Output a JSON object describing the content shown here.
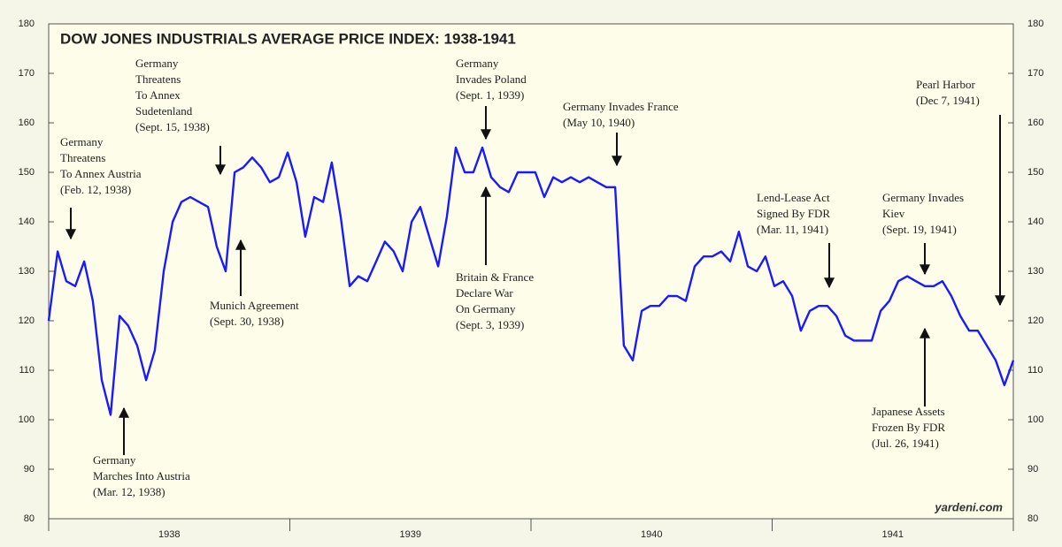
{
  "chart_data": {
    "type": "line",
    "title": "DOW JONES INDUSTRIALS AVERAGE PRICE INDEX: 1938-1941",
    "source": "yardeni.com",
    "x": [
      1938.0,
      1938.037,
      1938.073,
      1938.11,
      1938.147,
      1938.183,
      1938.22,
      1938.257,
      1938.294,
      1938.33,
      1938.367,
      1938.404,
      1938.44,
      1938.477,
      1938.514,
      1938.55,
      1938.587,
      1938.624,
      1938.661,
      1938.697,
      1938.734,
      1938.771,
      1938.807,
      1938.844,
      1938.881,
      1938.917,
      1938.954,
      1938.991,
      1939.028,
      1939.064,
      1939.101,
      1939.138,
      1939.174,
      1939.211,
      1939.248,
      1939.284,
      1939.321,
      1939.358,
      1939.394,
      1939.431,
      1939.468,
      1939.505,
      1939.541,
      1939.578,
      1939.615,
      1939.651,
      1939.688,
      1939.725,
      1939.761,
      1939.798,
      1939.835,
      1939.872,
      1939.908,
      1939.945,
      1939.982,
      1940.018,
      1940.055,
      1940.092,
      1940.128,
      1940.165,
      1940.202,
      1940.239,
      1940.275,
      1940.312,
      1940.349,
      1940.385,
      1940.422,
      1940.459,
      1940.495,
      1940.532,
      1940.569,
      1940.606,
      1940.642,
      1940.679,
      1940.716,
      1940.752,
      1940.789,
      1940.826,
      1940.862,
      1940.899,
      1940.936,
      1940.972,
      1941.009,
      1941.046,
      1941.083,
      1941.119,
      1941.156,
      1941.193,
      1941.229,
      1941.266,
      1941.303,
      1941.339,
      1941.376,
      1941.413,
      1941.45,
      1941.486,
      1941.523,
      1941.56,
      1941.596,
      1941.633,
      1941.67,
      1941.706,
      1941.743,
      1941.78,
      1941.817,
      1941.853,
      1941.89,
      1941.927,
      1941.963,
      1942.0
    ],
    "series": [
      {
        "name": "Dow Jones Industrials Average",
        "color": "#1a1aff",
        "values": [
          120,
          134,
          128,
          127,
          132,
          124,
          108,
          101,
          121,
          119,
          115,
          108,
          114,
          130,
          140,
          144,
          145,
          144,
          143,
          135,
          130,
          150,
          151,
          153,
          151,
          148,
          149,
          154,
          148,
          137,
          145,
          144,
          152,
          141,
          127,
          129,
          128,
          132,
          136,
          134,
          130,
          140,
          143,
          137,
          131,
          141,
          155,
          150,
          150,
          155,
          149,
          147,
          146,
          150,
          150,
          150,
          145,
          149,
          148,
          149,
          148,
          149,
          148,
          147,
          147,
          115,
          112,
          122,
          123,
          123,
          125,
          125,
          124,
          131,
          133,
          133,
          134,
          132,
          138,
          131,
          130,
          133,
          127,
          128,
          125,
          118,
          122,
          123,
          123,
          121,
          117,
          116,
          116,
          116,
          122,
          124,
          128,
          129,
          128,
          127,
          127,
          128,
          125,
          121,
          118,
          118,
          115,
          112,
          107,
          112
        ]
      }
    ],
    "xlim": [
      1938,
      1942
    ],
    "xticks": [
      {
        "value": 1938.5,
        "label": "1938"
      },
      {
        "value": 1939.5,
        "label": "1939"
      },
      {
        "value": 1940.5,
        "label": "1940"
      },
      {
        "value": 1941.5,
        "label": "1941"
      }
    ],
    "ylim": [
      80,
      180
    ],
    "yticks": [
      80,
      90,
      100,
      110,
      120,
      130,
      140,
      150,
      160,
      170,
      180
    ],
    "y2lim": [
      80,
      180
    ],
    "y2ticks": [
      80,
      90,
      100,
      110,
      120,
      130,
      140,
      150,
      160,
      170,
      180
    ],
    "annotations": [
      {
        "lines": [
          "Germany",
          "Threatens",
          "To Annex Austria",
          "(Feb. 12, 1938)"
        ]
      },
      {
        "lines": [
          "Germany",
          "Marches Into Austria",
          "(Mar. 12, 1938)"
        ]
      },
      {
        "lines": [
          "Germany",
          "Threatens",
          "To Annex",
          "Sudetenland",
          "(Sept. 15, 1938)"
        ]
      },
      {
        "lines": [
          "Munich Agreement",
          "(Sept. 30, 1938)"
        ]
      },
      {
        "lines": [
          "Germany",
          "Invades Poland",
          "(Sept. 1, 1939)"
        ]
      },
      {
        "lines": [
          "Britain & France",
          "Declare War",
          "On Germany",
          "(Sept. 3, 1939)"
        ]
      },
      {
        "lines": [
          "Germany Invades France",
          "(May 10, 1940)"
        ]
      },
      {
        "lines": [
          "Lend-Lease Act",
          "Signed By FDR",
          "(Mar. 11, 1941)"
        ]
      },
      {
        "lines": [
          "Germany Invades",
          "Kiev",
          "(Sept. 19, 1941)"
        ]
      },
      {
        "lines": [
          "Japanese Assets",
          "Frozen By FDR",
          "(Jul. 26, 1941)"
        ]
      },
      {
        "lines": [
          "Pearl Harbor",
          "(Dec 7, 1941)"
        ]
      }
    ]
  }
}
